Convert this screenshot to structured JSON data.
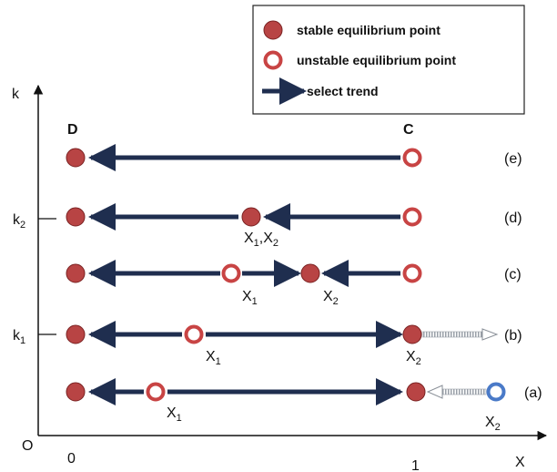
{
  "legend": {
    "stable": "stable equilibrium  point",
    "unstable": "unstable equilibrium  point",
    "trend": "select trend"
  },
  "axes": {
    "y_label": "k",
    "x_label": "X",
    "origin": "0",
    "x_tick_0": "0",
    "x_tick_1": "1",
    "y_tick_k2": "k",
    "y_tick_k2_sub": "2",
    "y_tick_k1": "k",
    "y_tick_k1_sub": "1",
    "corner_D": "D",
    "corner_C": "C",
    "corner_O": "O"
  },
  "rows": {
    "e": {
      "label": "(e)"
    },
    "d": {
      "label": "(d)",
      "x_point": "X",
      "sub1": "1",
      "sep": ",X",
      "sub2": "2"
    },
    "c": {
      "label": "(c)",
      "x1": "X",
      "x1_sub": "1",
      "x2": "X",
      "x2_sub": "2"
    },
    "b": {
      "label": "(b)",
      "x1": "X",
      "x1_sub": "1",
      "x2": "X",
      "x2_sub": "2"
    },
    "a": {
      "label": "(a)",
      "x1": "X",
      "x1_sub": "1",
      "x2": "X",
      "x2_sub": "2"
    }
  },
  "colors": {
    "stable_fill": "#b84444",
    "unstable_ring": "#c84444",
    "unstable_blue": "#4a7ac8",
    "trend": "#1f2e4f",
    "axis": "#111111"
  }
}
